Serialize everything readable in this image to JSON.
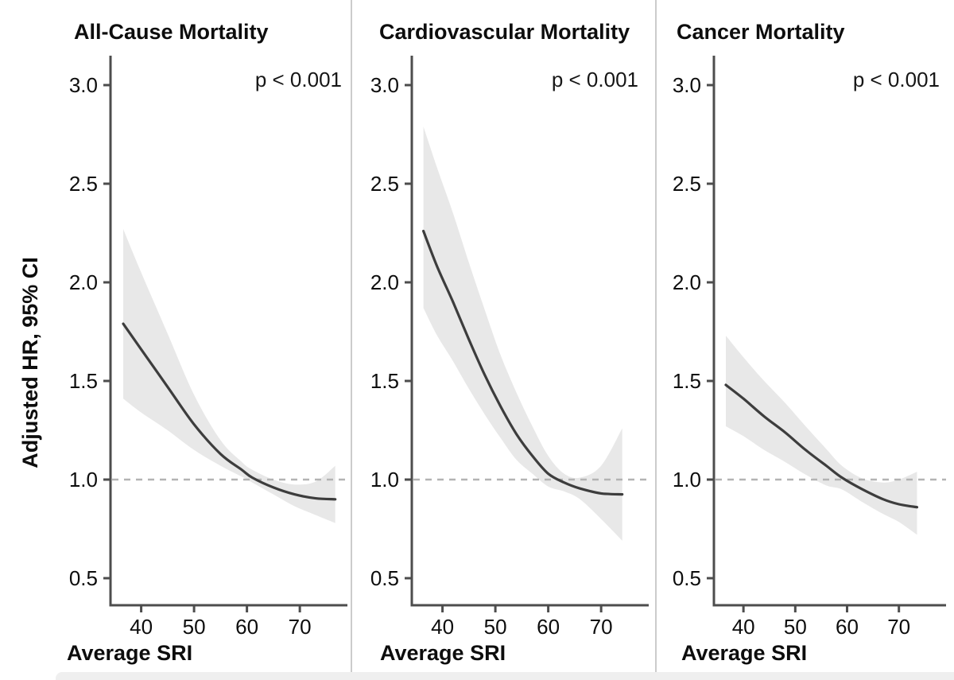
{
  "figure": {
    "y_axis_label": "Adjusted HR, 95% CI"
  },
  "styles": {
    "curve_color": "#3d3d3d",
    "band_color": "#e8e8e8",
    "reference_line_color": "#b3b3b3",
    "axis_color": "#4d4d4d",
    "separator_color": "#cccccc"
  },
  "chart_data": [
    {
      "type": "line",
      "title": "All-Cause Mortality",
      "p_label": "p < 0.001",
      "xlabel": "Average SRI",
      "ylabel": "Adjusted HR, 95% CI",
      "x_ticks": [
        40,
        50,
        60,
        70
      ],
      "y_ticks": [
        0.5,
        1.0,
        1.5,
        2.0,
        2.5,
        3.0
      ],
      "xlim": [
        34.2,
        79.0
      ],
      "ylim": [
        0.36,
        3.15
      ],
      "reference_line_y": 1.0,
      "legend": "none",
      "grid": false,
      "series": {
        "name": "Adjusted HR with 95% CI band",
        "x": [
          36.6,
          40,
          45,
          50,
          55,
          59,
          61,
          65,
          69,
          73,
          76.7
        ],
        "hr": [
          1.79,
          1.66,
          1.47,
          1.28,
          1.13,
          1.05,
          1.01,
          0.96,
          0.925,
          0.905,
          0.9
        ],
        "ci_upper": [
          2.27,
          2.05,
          1.74,
          1.43,
          1.2,
          1.09,
          1.05,
          1.0,
          0.975,
          0.99,
          1.07
        ],
        "ci_lower": [
          1.41,
          1.34,
          1.25,
          1.15,
          1.07,
          1.015,
          0.985,
          0.925,
          0.865,
          0.82,
          0.78
        ]
      }
    },
    {
      "type": "line",
      "title": "Cardiovascular Mortality",
      "p_label": "p < 0.001",
      "xlabel": "Average SRI",
      "ylabel": "Adjusted HR, 95% CI",
      "x_ticks": [
        40,
        50,
        60,
        70
      ],
      "y_ticks": [
        0.5,
        1.0,
        1.5,
        2.0,
        2.5,
        3.0
      ],
      "xlim": [
        34.2,
        79.0
      ],
      "ylim": [
        0.36,
        3.15
      ],
      "reference_line_y": 1.0,
      "legend": "none",
      "grid": false,
      "series": {
        "name": "Adjusted HR with 95% CI band",
        "x": [
          36.4,
          39,
          42,
          45,
          48,
          51,
          54,
          57,
          60,
          63,
          66,
          70,
          74
        ],
        "hr": [
          2.26,
          2.08,
          1.9,
          1.71,
          1.53,
          1.37,
          1.23,
          1.12,
          1.03,
          0.985,
          0.955,
          0.93,
          0.925
        ],
        "ci_upper": [
          2.79,
          2.58,
          2.35,
          2.1,
          1.86,
          1.63,
          1.44,
          1.27,
          1.12,
          1.03,
          1.01,
          1.07,
          1.26
        ],
        "ci_lower": [
          1.87,
          1.73,
          1.6,
          1.46,
          1.33,
          1.21,
          1.1,
          1.03,
          0.965,
          0.94,
          0.9,
          0.8,
          0.69
        ]
      }
    },
    {
      "type": "line",
      "title": "Cancer Mortality",
      "p_label": "p < 0.001",
      "xlabel": "Average SRI",
      "ylabel": "Adjusted HR, 95% CI",
      "x_ticks": [
        40,
        50,
        60,
        70
      ],
      "y_ticks": [
        0.5,
        1.0,
        1.5,
        2.0,
        2.5,
        3.0
      ],
      "xlim": [
        34.3,
        79.1
      ],
      "ylim": [
        0.36,
        3.15
      ],
      "reference_line_y": 1.0,
      "legend": "none",
      "grid": false,
      "series": {
        "name": "Adjusted HR with 95% CI band",
        "x": [
          36.6,
          40,
          44,
          48,
          52,
          56,
          59,
          63,
          67,
          70,
          73.5
        ],
        "hr": [
          1.48,
          1.41,
          1.32,
          1.24,
          1.15,
          1.07,
          1.01,
          0.95,
          0.9,
          0.875,
          0.86
        ],
        "ci_upper": [
          1.73,
          1.62,
          1.5,
          1.39,
          1.27,
          1.155,
          1.07,
          1.005,
          0.985,
          1.0,
          1.04
        ],
        "ci_lower": [
          1.27,
          1.22,
          1.15,
          1.09,
          1.025,
          0.97,
          0.95,
          0.885,
          0.825,
          0.785,
          0.72
        ]
      }
    }
  ]
}
